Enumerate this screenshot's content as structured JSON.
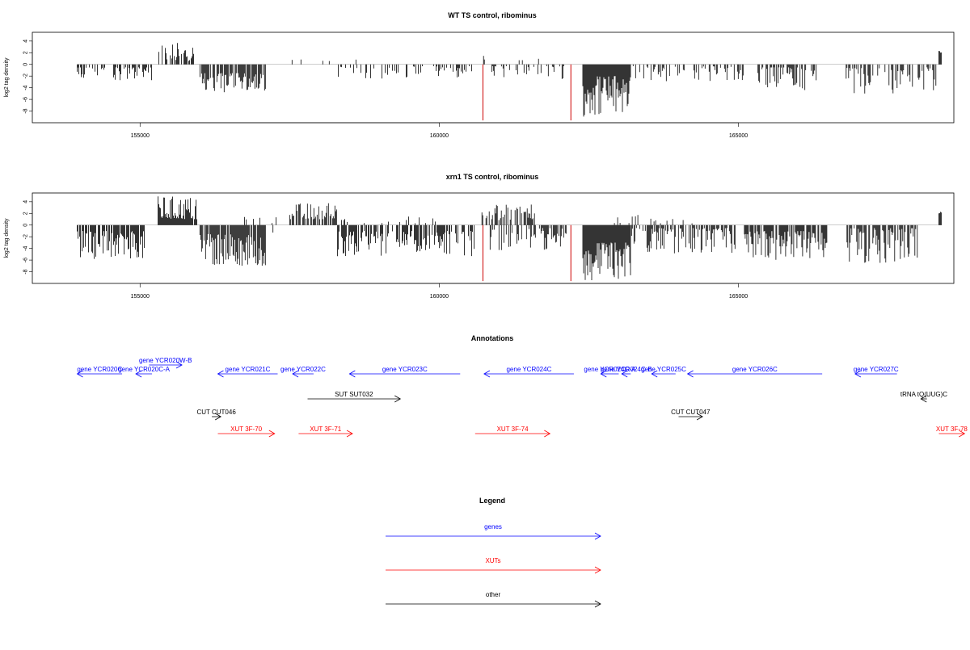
{
  "chart_data": [
    {
      "type": "bar",
      "title": "WT TS control, ribominus",
      "ylabel": "log2 tag density",
      "xlabel": "",
      "xlim": [
        153200,
        168600
      ],
      "ylim": [
        -10,
        5.5
      ],
      "xticks": [
        155000,
        160000,
        165000
      ],
      "xtick_labels": [
        "155000",
        "160000",
        "165000"
      ],
      "yticks": [
        4,
        2,
        0,
        -2,
        -4,
        -6,
        -8
      ],
      "ytick_labels": [
        "4",
        "2",
        "0",
        "-2",
        "-4",
        "-6",
        "-8"
      ],
      "colors": {
        "bars": "#000000",
        "marker": "#cc0000",
        "baseline": "#999999"
      },
      "markers": [
        160730,
        162200
      ],
      "positive_segments": [
        {
          "start": 155300,
          "end": 155900,
          "min": 0.6,
          "max": 3.8,
          "density": 0.6
        },
        {
          "start": 157500,
          "end": 159000,
          "min": 0.5,
          "max": 1.2,
          "density": 0.08
        },
        {
          "start": 160700,
          "end": 160850,
          "min": 0.8,
          "max": 1.8,
          "density": 0.2
        },
        {
          "start": 161200,
          "end": 161900,
          "min": 0.5,
          "max": 1.4,
          "density": 0.06
        },
        {
          "start": 168350,
          "end": 168400,
          "min": 2.0,
          "max": 2.4,
          "density": 1.0
        }
      ],
      "negative_segments": [
        {
          "start": 153950,
          "end": 155200,
          "min": 0.5,
          "max": 3.0,
          "density": 0.5
        },
        {
          "start": 156000,
          "end": 157100,
          "min": 1.5,
          "max": 5.0,
          "density": 0.8
        },
        {
          "start": 158300,
          "end": 160600,
          "min": 0.3,
          "max": 2.5,
          "density": 0.3
        },
        {
          "start": 160850,
          "end": 162100,
          "min": 0.3,
          "max": 3.0,
          "density": 0.25
        },
        {
          "start": 162400,
          "end": 163200,
          "min": 2.0,
          "max": 9.0,
          "density": 1.0
        },
        {
          "start": 163200,
          "end": 165100,
          "min": 0.3,
          "max": 3.0,
          "density": 0.3
        },
        {
          "start": 165300,
          "end": 166300,
          "min": 0.5,
          "max": 4.5,
          "density": 0.6
        },
        {
          "start": 166800,
          "end": 168300,
          "min": 0.5,
          "max": 5.0,
          "density": 0.5
        }
      ]
    },
    {
      "type": "bar",
      "title": "xrn1 TS control, ribominus",
      "ylabel": "log2 tag density",
      "xlabel": "",
      "xlim": [
        153200,
        168600
      ],
      "ylim": [
        -10,
        5.5
      ],
      "xticks": [
        155000,
        160000,
        165000
      ],
      "xtick_labels": [
        "155000",
        "160000",
        "165000"
      ],
      "yticks": [
        4,
        2,
        0,
        -2,
        -4,
        -6,
        -8
      ],
      "ytick_labels": [
        "4",
        "2",
        "0",
        "-2",
        "-4",
        "-6",
        "-8"
      ],
      "colors": {
        "bars": "#000000",
        "marker": "#cc0000",
        "baseline": "#999999"
      },
      "markers": [
        160730,
        162200
      ],
      "positive_segments": [
        {
          "start": 155300,
          "end": 155950,
          "min": 1.0,
          "max": 5.0,
          "density": 0.9
        },
        {
          "start": 156300,
          "end": 157300,
          "min": 0.3,
          "max": 1.5,
          "density": 0.1
        },
        {
          "start": 157500,
          "end": 158300,
          "min": 1.0,
          "max": 3.8,
          "density": 0.7
        },
        {
          "start": 158300,
          "end": 160000,
          "min": 0.3,
          "max": 2.0,
          "density": 0.15
        },
        {
          "start": 160700,
          "end": 161600,
          "min": 0.8,
          "max": 4.0,
          "density": 0.5
        },
        {
          "start": 162900,
          "end": 164300,
          "min": 0.3,
          "max": 1.8,
          "density": 0.12
        },
        {
          "start": 168350,
          "end": 168400,
          "min": 2.0,
          "max": 2.4,
          "density": 1.0
        }
      ],
      "negative_segments": [
        {
          "start": 153950,
          "end": 155100,
          "min": 1.0,
          "max": 5.8,
          "density": 0.8
        },
        {
          "start": 156000,
          "end": 157100,
          "min": 1.5,
          "max": 7.0,
          "density": 0.9
        },
        {
          "start": 157100,
          "end": 157300,
          "min": 0.5,
          "max": 1.5,
          "density": 0.3
        },
        {
          "start": 158300,
          "end": 160600,
          "min": 1.0,
          "max": 5.5,
          "density": 0.7
        },
        {
          "start": 160850,
          "end": 162150,
          "min": 0.5,
          "max": 4.5,
          "density": 0.5
        },
        {
          "start": 162400,
          "end": 163200,
          "min": 3.0,
          "max": 9.5,
          "density": 1.0
        },
        {
          "start": 163200,
          "end": 165000,
          "min": 0.5,
          "max": 5.0,
          "density": 0.6
        },
        {
          "start": 165100,
          "end": 166500,
          "min": 1.0,
          "max": 6.0,
          "density": 0.8
        },
        {
          "start": 166800,
          "end": 168000,
          "min": 0.5,
          "max": 6.5,
          "density": 0.7
        }
      ]
    }
  ],
  "annotations": {
    "title": "Annotations",
    "genes": [
      {
        "label": "gene YCR020C",
        "start": 153950,
        "end": 154700,
        "dir": -1,
        "row": 0
      },
      {
        "label": "gene YCR020C-A",
        "start": 154930,
        "end": 155200,
        "dir": -1,
        "row": 0
      },
      {
        "label": "gene YCR020W-B",
        "start": 155150,
        "end": 155700,
        "dir": 1,
        "row": -1
      },
      {
        "label": "gene YCR021C",
        "start": 156300,
        "end": 157300,
        "dir": -1,
        "row": 0
      },
      {
        "label": "gene YCR022C",
        "start": 157550,
        "end": 157900,
        "dir": -1,
        "row": 0
      },
      {
        "label": "gene YCR023C",
        "start": 158500,
        "end": 160350,
        "dir": -1,
        "row": 0
      },
      {
        "label": "gene YCR024C",
        "start": 160750,
        "end": 162250,
        "dir": -1,
        "row": 0
      },
      {
        "label": "gene YCR024C-A",
        "start": 162700,
        "end": 163000,
        "dir": -1,
        "row": 0
      },
      {
        "label": "gene YCR024C-B",
        "start": 163050,
        "end": 163200,
        "dir": -1,
        "row": 0
      },
      {
        "label": "gene YCR025C",
        "start": 163550,
        "end": 163950,
        "dir": -1,
        "row": 0
      },
      {
        "label": "gene YCR026C",
        "start": 164150,
        "end": 166400,
        "dir": -1,
        "row": 0
      },
      {
        "label": "gene YCR027C",
        "start": 166950,
        "end": 167650,
        "dir": -1,
        "row": 0
      }
    ],
    "other": [
      {
        "label": "SUT SUT032",
        "start": 157800,
        "end": 159350,
        "dir": 1,
        "row": 1
      },
      {
        "label": "tRNA tQ(UUG)C",
        "start": 168050,
        "end": 168150,
        "dir": -1,
        "row": 1
      },
      {
        "label": "CUT CUT046",
        "start": 156200,
        "end": 156350,
        "dir": 1,
        "row": 2
      },
      {
        "label": "CUT CUT047",
        "start": 164000,
        "end": 164400,
        "dir": 1,
        "row": 2
      }
    ],
    "xuts": [
      {
        "label": "XUT 3F-70",
        "start": 156300,
        "end": 157250,
        "dir": 1,
        "row": 3
      },
      {
        "label": "XUT 3F-71",
        "start": 157650,
        "end": 158550,
        "dir": 1,
        "row": 3
      },
      {
        "label": "XUT 3F-74",
        "start": 160600,
        "end": 161850,
        "dir": 1,
        "row": 3
      },
      {
        "label": "XUT 3F-78",
        "start": 168350,
        "end": 168780,
        "dir": 1,
        "row": 3
      }
    ]
  },
  "legend": {
    "title": "Legend",
    "items": [
      {
        "label": "genes",
        "color": "#0000ff"
      },
      {
        "label": "XUTs",
        "color": "#ff0000"
      },
      {
        "label": "other",
        "color": "#000000"
      }
    ]
  }
}
